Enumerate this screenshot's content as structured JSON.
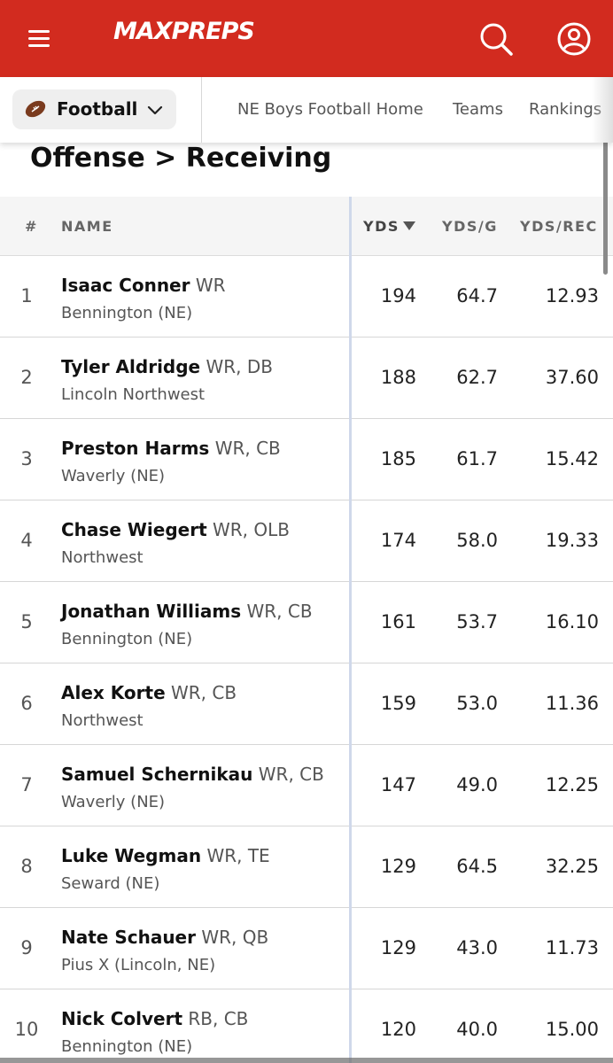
{
  "header": {
    "brand": "MAXPREPS",
    "menu_icon": "hamburger-menu-icon",
    "search_icon": "search-icon",
    "account_icon": "user-account-icon",
    "colors": {
      "brand_red": "#d22b1f",
      "text_white": "#ffffff",
      "sort_highlight": "#e1eafa"
    }
  },
  "subnav": {
    "sport": "Football",
    "sport_icon": "football-icon",
    "links": [
      "NE Boys Football Home",
      "Teams",
      "Rankings"
    ]
  },
  "page": {
    "title": "Offense > Receiving"
  },
  "table": {
    "columns": {
      "rank": "#",
      "name": "NAME",
      "yds": "YDS",
      "ydsg": "YDS/G",
      "ydsrec": "YDS/REC"
    },
    "rows": [
      {
        "rank": "1",
        "name": "Isaac Conner",
        "pos": "WR",
        "school": "Bennington (NE)",
        "yds": "194",
        "ydsg": "64.7",
        "ydsrec": "12.93"
      },
      {
        "rank": "2",
        "name": "Tyler Aldridge",
        "pos": "WR, DB",
        "school": "Lincoln Northwest",
        "yds": "188",
        "ydsg": "62.7",
        "ydsrec": "37.60"
      },
      {
        "rank": "3",
        "name": "Preston Harms",
        "pos": "WR, CB",
        "school": "Waverly (NE)",
        "yds": "185",
        "ydsg": "61.7",
        "ydsrec": "15.42"
      },
      {
        "rank": "4",
        "name": "Chase Wiegert",
        "pos": "WR, OLB",
        "school": "Northwest",
        "yds": "174",
        "ydsg": "58.0",
        "ydsrec": "19.33"
      },
      {
        "rank": "5",
        "name": "Jonathan Williams",
        "pos": "WR, CB",
        "school": "Bennington (NE)",
        "yds": "161",
        "ydsg": "53.7",
        "ydsrec": "16.10"
      },
      {
        "rank": "6",
        "name": "Alex Korte",
        "pos": "WR, CB",
        "school": "Northwest",
        "yds": "159",
        "ydsg": "53.0",
        "ydsrec": "11.36"
      },
      {
        "rank": "7",
        "name": "Samuel Schernikau",
        "pos": "WR, CB",
        "school": "Waverly (NE)",
        "yds": "147",
        "ydsg": "49.0",
        "ydsrec": "12.25"
      },
      {
        "rank": "8",
        "name": "Luke Wegman",
        "pos": "WR, TE",
        "school": "Seward (NE)",
        "yds": "129",
        "ydsg": "64.5",
        "ydsrec": "32.25"
      },
      {
        "rank": "9",
        "name": "Nate Schauer",
        "pos": "WR, QB",
        "school": "Pius X (Lincoln, NE)",
        "yds": "129",
        "ydsg": "43.0",
        "ydsrec": "11.73"
      },
      {
        "rank": "10",
        "name": "Nick Colvert",
        "pos": "RB, CB",
        "school": "Bennington (NE)",
        "yds": "120",
        "ydsg": "40.0",
        "ydsrec": "15.00"
      }
    ]
  }
}
